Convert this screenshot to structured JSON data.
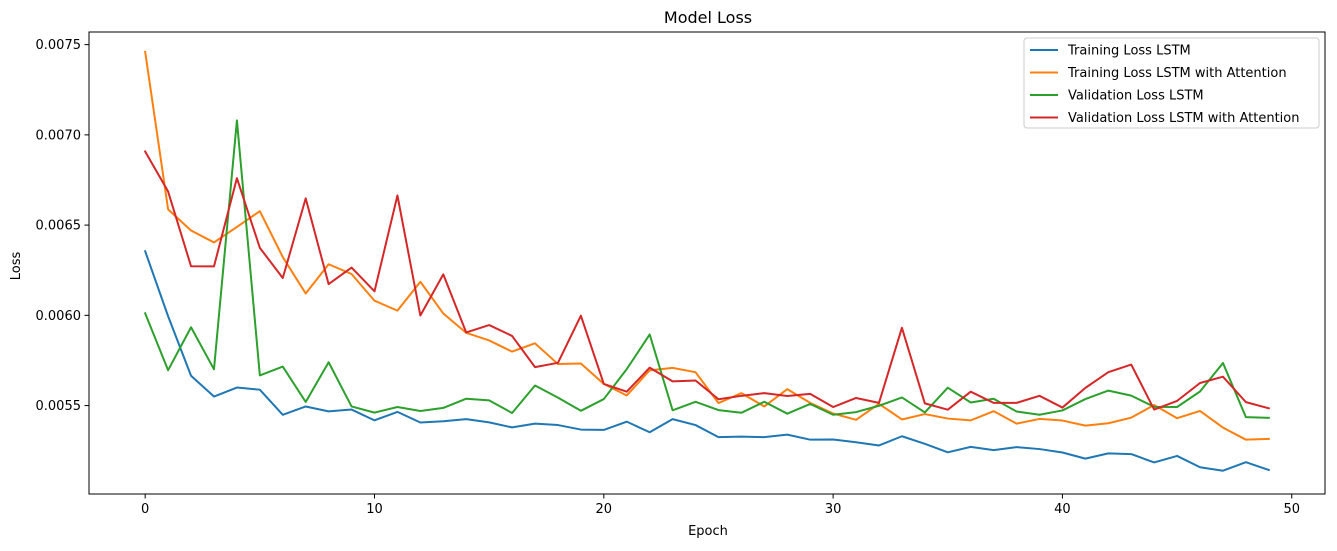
{
  "chart_data": {
    "type": "line",
    "title": "Model Loss",
    "xlabel": "Epoch",
    "ylabel": "Loss",
    "xlim": [
      -2.45,
      51.45
    ],
    "ylim": [
      0.00501,
      0.00757
    ],
    "xticks": [
      0,
      10,
      20,
      30,
      40,
      50
    ],
    "xtick_labels": [
      "0",
      "10",
      "20",
      "30",
      "40",
      "50"
    ],
    "yticks": [
      0.0055,
      0.006,
      0.0065,
      0.007,
      0.0075
    ],
    "ytick_labels": [
      "0.0055",
      "0.0060",
      "0.0065",
      "0.0070",
      "0.0075"
    ],
    "grid": false,
    "legend": "top-right",
    "x": [
      0,
      1,
      2,
      3,
      4,
      5,
      6,
      7,
      8,
      9,
      10,
      11,
      12,
      13,
      14,
      15,
      16,
      17,
      18,
      19,
      20,
      21,
      22,
      23,
      24,
      25,
      26,
      27,
      28,
      29,
      30,
      31,
      32,
      33,
      34,
      35,
      36,
      37,
      38,
      39,
      40,
      41,
      42,
      43,
      44,
      45,
      46,
      47,
      48,
      49
    ],
    "series": [
      {
        "name": "Training Loss LSTM",
        "color": "#1f77b4",
        "values": [
          0.006355,
          0.005995,
          0.005665,
          0.00555,
          0.0056,
          0.005588,
          0.005449,
          0.005495,
          0.005468,
          0.005478,
          0.005418,
          0.005465,
          0.005406,
          0.005413,
          0.005425,
          0.005407,
          0.005379,
          0.0054,
          0.005392,
          0.005367,
          0.005365,
          0.005411,
          0.005352,
          0.005425,
          0.005392,
          0.005325,
          0.005328,
          0.005325,
          0.005339,
          0.005311,
          0.005312,
          0.005297,
          0.005279,
          0.00533,
          0.005288,
          0.005241,
          0.005271,
          0.005253,
          0.00527,
          0.005259,
          0.00524,
          0.005206,
          0.005235,
          0.005231,
          0.005185,
          0.005221,
          0.005158,
          0.005139,
          0.005186,
          0.005143
        ]
      },
      {
        "name": "Training Loss LSTM with Attention",
        "color": "#ff7f0e",
        "values": [
          0.00746,
          0.006587,
          0.00647,
          0.006404,
          0.00649,
          0.006577,
          0.006323,
          0.006121,
          0.006283,
          0.006229,
          0.006081,
          0.006026,
          0.006186,
          0.00601,
          0.005903,
          0.005861,
          0.005799,
          0.005845,
          0.00573,
          0.005733,
          0.00562,
          0.005556,
          0.005695,
          0.005709,
          0.005685,
          0.005514,
          0.005569,
          0.005495,
          0.005591,
          0.005515,
          0.005456,
          0.005421,
          0.00551,
          0.005423,
          0.005453,
          0.005428,
          0.005418,
          0.005469,
          0.0054,
          0.005426,
          0.005417,
          0.005389,
          0.005402,
          0.005433,
          0.005503,
          0.00543,
          0.00547,
          0.005378,
          0.005311,
          0.005315
        ]
      },
      {
        "name": "Validation Loss LSTM",
        "color": "#2ca02c",
        "values": [
          0.006011,
          0.005696,
          0.005934,
          0.005701,
          0.00708,
          0.005667,
          0.005716,
          0.00552,
          0.00574,
          0.005495,
          0.005461,
          0.005492,
          0.00547,
          0.005487,
          0.005538,
          0.005529,
          0.005459,
          0.005611,
          0.005544,
          0.005471,
          0.005536,
          0.005702,
          0.005894,
          0.005474,
          0.005521,
          0.005475,
          0.00546,
          0.005521,
          0.005455,
          0.005509,
          0.005449,
          0.005464,
          0.005499,
          0.005545,
          0.005462,
          0.005599,
          0.005517,
          0.005538,
          0.005467,
          0.005449,
          0.005473,
          0.005536,
          0.005583,
          0.005555,
          0.005493,
          0.005492,
          0.005578,
          0.005736,
          0.005436,
          0.005432
        ]
      },
      {
        "name": "Validation Loss LSTM with Attention",
        "color": "#d62728",
        "values": [
          0.006908,
          0.006686,
          0.006272,
          0.006271,
          0.00676,
          0.006374,
          0.006207,
          0.006648,
          0.006173,
          0.006265,
          0.006133,
          0.006664,
          0.005999,
          0.006227,
          0.005905,
          0.005946,
          0.005886,
          0.005713,
          0.005737,
          0.005998,
          0.00562,
          0.005577,
          0.00571,
          0.005634,
          0.005639,
          0.005535,
          0.005554,
          0.005569,
          0.005553,
          0.005565,
          0.005492,
          0.005542,
          0.005515,
          0.005931,
          0.005512,
          0.005477,
          0.005577,
          0.005515,
          0.005515,
          0.005554,
          0.005489,
          0.005598,
          0.005685,
          0.005727,
          0.005478,
          0.005526,
          0.005625,
          0.00566,
          0.005519,
          0.005485
        ]
      }
    ]
  }
}
